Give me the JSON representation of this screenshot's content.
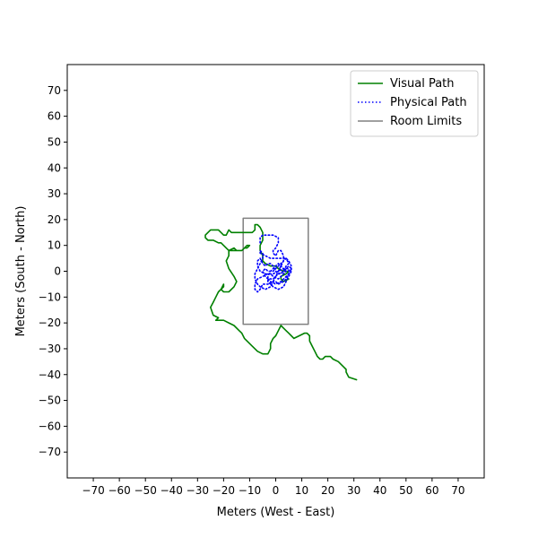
{
  "chart_data": {
    "type": "line",
    "xlabel": "Meters (West - East)",
    "ylabel": "Meters (South - North)",
    "xlim": [
      -80,
      80
    ],
    "ylim": [
      -80,
      80
    ],
    "xticks": [
      -70,
      -60,
      -50,
      -40,
      -30,
      -20,
      -10,
      0,
      10,
      20,
      30,
      40,
      50,
      60,
      70
    ],
    "yticks": [
      -70,
      -60,
      -50,
      -40,
      -30,
      -20,
      -10,
      0,
      10,
      20,
      30,
      40,
      50,
      60,
      70
    ],
    "tick_minus": "−",
    "grid": false,
    "legend_position": "top-right",
    "series": [
      {
        "name": "Visual Path",
        "color": "#008000",
        "style": "solid",
        "points": [
          [
            31,
            -42
          ],
          [
            28,
            -41
          ],
          [
            27,
            -39
          ],
          [
            27,
            -38
          ],
          [
            26,
            -37
          ],
          [
            24,
            -35
          ],
          [
            22,
            -34
          ],
          [
            21,
            -33
          ],
          [
            20,
            -33
          ],
          [
            19,
            -33
          ],
          [
            18,
            -34
          ],
          [
            17,
            -34
          ],
          [
            16,
            -33
          ],
          [
            15,
            -31
          ],
          [
            14,
            -29
          ],
          [
            13,
            -27
          ],
          [
            13,
            -25
          ],
          [
            12,
            -24
          ],
          [
            11,
            -24
          ],
          [
            9,
            -25
          ],
          [
            7,
            -26
          ],
          [
            6,
            -25
          ],
          [
            5,
            -24
          ],
          [
            4,
            -23
          ],
          [
            3,
            -22
          ],
          [
            2,
            -21
          ],
          [
            1,
            -23
          ],
          [
            0,
            -25
          ],
          [
            -1,
            -26
          ],
          [
            -2,
            -28
          ],
          [
            -2,
            -30
          ],
          [
            -3,
            -32
          ],
          [
            -5,
            -32
          ],
          [
            -7,
            -31
          ],
          [
            -9,
            -29
          ],
          [
            -11,
            -27
          ],
          [
            -12,
            -26
          ],
          [
            -13,
            -24
          ],
          [
            -14,
            -23
          ],
          [
            -16,
            -21
          ],
          [
            -18,
            -20
          ],
          [
            -20,
            -19
          ],
          [
            -22,
            -19
          ],
          [
            -23,
            -19
          ],
          [
            -22,
            -18
          ],
          [
            -24,
            -17
          ],
          [
            -25,
            -14
          ],
          [
            -24,
            -12
          ],
          [
            -23,
            -10
          ],
          [
            -22,
            -8
          ],
          [
            -20,
            -6
          ],
          [
            -20,
            -5
          ],
          [
            -21,
            -7
          ],
          [
            -20,
            -8
          ],
          [
            -18,
            -8
          ],
          [
            -16,
            -6
          ],
          [
            -15,
            -4
          ],
          [
            -16,
            -2
          ],
          [
            -18,
            1
          ],
          [
            -19,
            4
          ],
          [
            -18,
            6
          ],
          [
            -18,
            8
          ],
          [
            -17,
            8
          ],
          [
            -15,
            8
          ],
          [
            -13,
            8
          ],
          [
            -12,
            9
          ],
          [
            -11,
            10
          ],
          [
            -10,
            10
          ],
          [
            -11,
            9
          ],
          [
            -12,
            9
          ],
          [
            -13,
            8
          ],
          [
            -15,
            8
          ],
          [
            -16,
            9
          ],
          [
            -18,
            8
          ],
          [
            -19,
            9
          ],
          [
            -20,
            10
          ],
          [
            -21,
            11
          ],
          [
            -22,
            11
          ],
          [
            -24,
            12
          ],
          [
            -26,
            12
          ],
          [
            -27,
            13
          ],
          [
            -27,
            14
          ],
          [
            -26,
            15
          ],
          [
            -25,
            16
          ],
          [
            -23,
            16
          ],
          [
            -22,
            16
          ],
          [
            -21,
            15
          ],
          [
            -20,
            14
          ],
          [
            -19,
            14
          ],
          [
            -18,
            16
          ],
          [
            -17,
            15
          ],
          [
            -15,
            15
          ],
          [
            -13,
            15
          ],
          [
            -11,
            15
          ],
          [
            -9,
            15
          ],
          [
            -8,
            16
          ],
          [
            -8,
            18
          ],
          [
            -7,
            18
          ],
          [
            -6,
            17
          ],
          [
            -5,
            15
          ],
          [
            -5,
            12
          ],
          [
            -6,
            10
          ],
          [
            -6,
            8
          ],
          [
            -5,
            6
          ],
          [
            -5,
            4
          ],
          [
            -4,
            3
          ],
          [
            -2,
            2
          ],
          [
            0,
            2
          ],
          [
            1,
            1
          ],
          [
            3,
            0
          ],
          [
            5,
            0
          ],
          [
            4,
            -1
          ],
          [
            2,
            -2
          ],
          [
            2,
            -3
          ],
          [
            3,
            -4
          ],
          [
            5,
            -3
          ]
        ]
      },
      {
        "name": "Physical Path",
        "color": "#0000ff",
        "style": "dotted",
        "points": [
          [
            -6,
            11
          ],
          [
            -6,
            13
          ],
          [
            -5,
            14
          ],
          [
            -3,
            14
          ],
          [
            -1,
            14
          ],
          [
            1,
            13
          ],
          [
            1,
            11
          ],
          [
            0,
            9
          ],
          [
            -1,
            8
          ],
          [
            -1,
            7
          ],
          [
            0,
            6
          ],
          [
            1,
            8
          ],
          [
            2,
            8
          ],
          [
            3,
            6
          ],
          [
            3,
            4
          ],
          [
            2,
            3
          ],
          [
            1,
            2
          ],
          [
            0,
            1
          ],
          [
            -1,
            0
          ],
          [
            -3,
            0
          ],
          [
            -4,
            1
          ],
          [
            -5,
            0
          ],
          [
            -4,
            -2
          ],
          [
            -3,
            -3
          ],
          [
            -1,
            -3
          ],
          [
            0,
            -2
          ],
          [
            1,
            -1
          ],
          [
            3,
            0
          ],
          [
            4,
            1
          ],
          [
            5,
            2
          ],
          [
            6,
            1
          ],
          [
            5,
            -1
          ],
          [
            4,
            -3
          ],
          [
            3,
            -4
          ],
          [
            1,
            -5
          ],
          [
            0,
            -4
          ],
          [
            -1,
            -4
          ],
          [
            -2,
            -6
          ],
          [
            -4,
            -7
          ],
          [
            -6,
            -6
          ],
          [
            -7,
            -5
          ],
          [
            -8,
            -3
          ],
          [
            -8,
            -1
          ],
          [
            -7,
            1
          ],
          [
            -6,
            3
          ],
          [
            -5,
            5
          ],
          [
            -5,
            7
          ],
          [
            -6,
            8
          ],
          [
            -6,
            7
          ],
          [
            -4,
            6
          ],
          [
            -2,
            5
          ],
          [
            0,
            5
          ],
          [
            2,
            5
          ],
          [
            4,
            5
          ],
          [
            5,
            4
          ],
          [
            6,
            2
          ],
          [
            6,
            0
          ],
          [
            5,
            -2
          ],
          [
            4,
            -4
          ],
          [
            3,
            -6
          ],
          [
            1,
            -7
          ],
          [
            -1,
            -6
          ],
          [
            -2,
            -5
          ],
          [
            -3,
            -4
          ],
          [
            -3,
            -2
          ],
          [
            -2,
            0
          ],
          [
            -1,
            1
          ],
          [
            0,
            2
          ],
          [
            1,
            3
          ],
          [
            2,
            2
          ],
          [
            3,
            1
          ],
          [
            4,
            0
          ],
          [
            3,
            -1
          ],
          [
            2,
            -2
          ],
          [
            1,
            -3
          ],
          [
            -1,
            -2
          ],
          [
            -2,
            -1
          ],
          [
            -4,
            -1
          ],
          [
            -6,
            0
          ],
          [
            -7,
            2
          ],
          [
            -7,
            4
          ],
          [
            -6,
            5
          ],
          [
            -5,
            3
          ],
          [
            -4,
            2
          ],
          [
            -3,
            3
          ],
          [
            -2,
            3
          ],
          [
            -1,
            2
          ],
          [
            0,
            0
          ],
          [
            1,
            -1
          ],
          [
            2,
            -1
          ],
          [
            3,
            0
          ],
          [
            4,
            2
          ],
          [
            5,
            3
          ],
          [
            4,
            5
          ],
          [
            3,
            4
          ],
          [
            2,
            2
          ],
          [
            1,
            0
          ],
          [
            0,
            -2
          ],
          [
            -1,
            -4
          ],
          [
            -3,
            -5
          ],
          [
            -5,
            -5
          ],
          [
            -6,
            -7
          ],
          [
            -7,
            -8
          ],
          [
            -8,
            -7
          ],
          [
            -8,
            -5
          ],
          [
            -7,
            -3
          ],
          [
            -5,
            -2
          ],
          [
            -3,
            -1
          ],
          [
            -1,
            -1
          ],
          [
            1,
            0
          ],
          [
            3,
            1
          ],
          [
            5,
            1
          ],
          [
            5,
            -1
          ],
          [
            4,
            -2
          ],
          [
            2,
            -4
          ],
          [
            0,
            -5
          ],
          [
            -2,
            -4
          ],
          [
            -3,
            -3
          ]
        ]
      },
      {
        "name": "Room Limits",
        "color": "#808080",
        "style": "solid",
        "points": [
          [
            -12.5,
            -20.5
          ],
          [
            12.5,
            -20.5
          ],
          [
            12.5,
            20.5
          ],
          [
            -12.5,
            20.5
          ],
          [
            -12.5,
            -20.5
          ]
        ]
      }
    ]
  }
}
